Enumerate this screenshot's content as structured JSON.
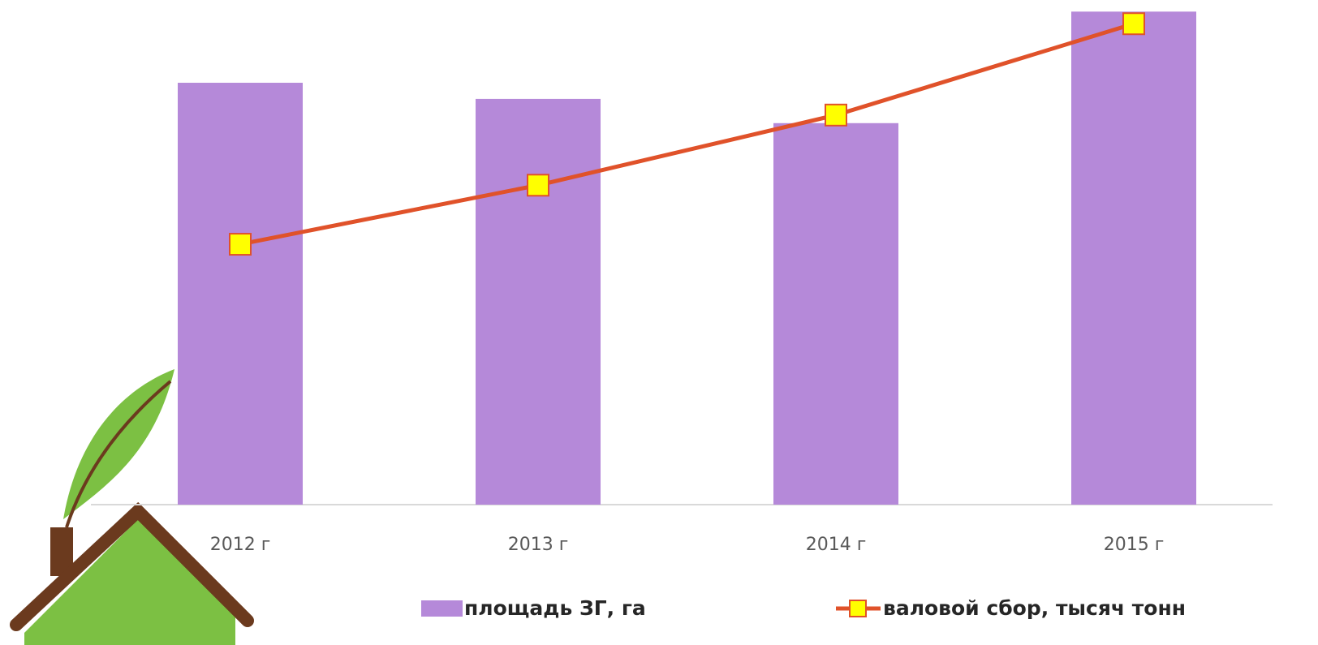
{
  "chart_data": {
    "type": "bar_line",
    "categories": [
      "2012 г",
      "2013 г",
      "2014 г",
      "2015 г"
    ],
    "series": [
      {
        "name": "площадь ЗГ, га",
        "type": "bar",
        "color": "#b589d9",
        "values": [
          83.6,
          80.4,
          75.6,
          97.7
        ]
      },
      {
        "name": "валовой сбор, тысяч тонн",
        "type": "line",
        "axis": "y2",
        "color": "#e0522a",
        "marker_color": "#ffff00",
        "values": [
          51.6,
          63.3,
          77.2,
          95.3
        ]
      }
    ],
    "ylim": [
      0,
      100
    ],
    "y2lim": [
      0,
      100
    ],
    "grid": false,
    "legend": "bottom"
  }
}
